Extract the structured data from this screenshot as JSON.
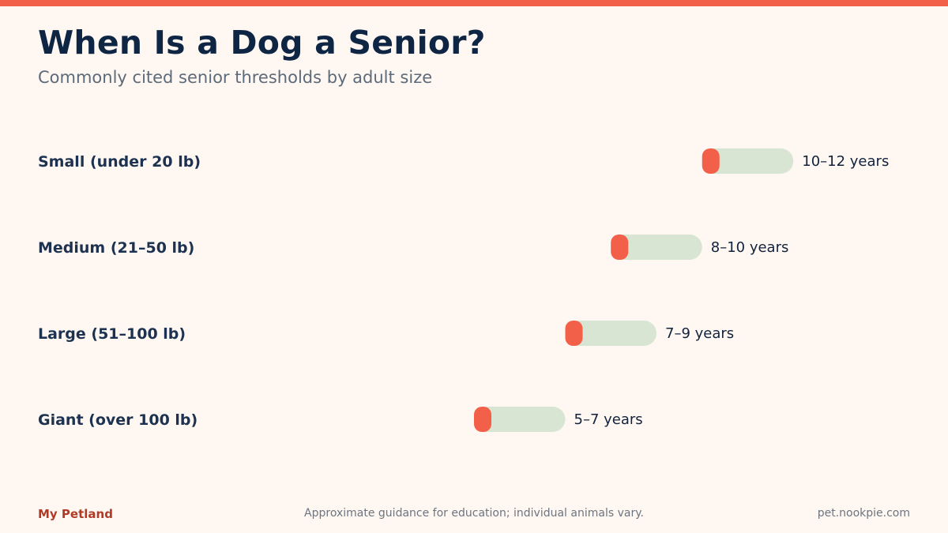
{
  "header": {
    "title": "When Is a Dog a Senior?",
    "subtitle": "Commonly cited senior thresholds by adult size"
  },
  "footer": {
    "brand": "My Petland",
    "note": "Approximate guidance for education; individual animals vary.",
    "url": "pet.nookpie.com"
  },
  "colors": {
    "accent": "#f2604a",
    "range_track": "#d7e5d2",
    "title": "#0f2544"
  },
  "chart_data": {
    "type": "bar",
    "categories": [
      "Small (under 20 lb)",
      "Medium (21–50 lb)",
      "Large (51–100 lb)",
      "Giant (over 100 lb)"
    ],
    "ranges": [
      [
        10,
        12
      ],
      [
        8,
        10
      ],
      [
        7,
        9
      ],
      [
        5,
        7
      ]
    ],
    "value_labels": [
      "10–12 years",
      "8–10 years",
      "7–9 years",
      "5–7 years"
    ],
    "title": "When Is a Dog a Senior?",
    "xlabel": "",
    "ylabel": "",
    "grid": false,
    "legend": "none"
  }
}
